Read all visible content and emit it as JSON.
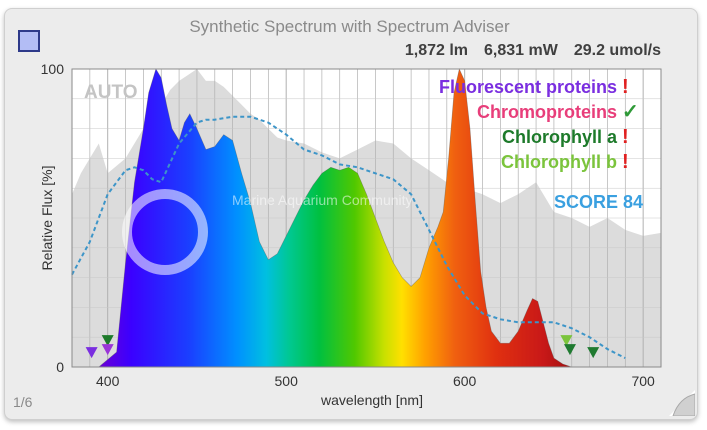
{
  "header": {
    "title": "Synthetic Spectrum with Spectrum Adviser",
    "stats": [
      "1,872 lm",
      "6,831 mW",
      "29.2 umol/s"
    ]
  },
  "page_indicator": "1/6",
  "watermark": "Marine Aquarium Community",
  "icons": {
    "swatch": "color-swatch-icon",
    "page_curl": "page-curl-icon"
  },
  "chart_data": {
    "type": "area",
    "title": "Synthetic Spectrum with Spectrum Adviser",
    "xlabel": "wavelength [nm]",
    "ylabel": "Relative Flux [%]",
    "xlim": [
      380,
      710
    ],
    "ylim": [
      0,
      100
    ],
    "x_ticks": [
      400,
      500,
      600,
      700
    ],
    "y_ticks": [
      0,
      100
    ],
    "grid": true,
    "auto_label": "AUTO",
    "score": "SCORE 84",
    "spectrum": {
      "x": [
        395,
        405,
        410,
        415,
        420,
        423,
        427,
        430,
        433,
        436,
        440,
        443,
        446,
        450,
        455,
        460,
        465,
        470,
        475,
        480,
        485,
        490,
        495,
        500,
        505,
        510,
        515,
        520,
        525,
        530,
        535,
        540,
        545,
        550,
        555,
        560,
        565,
        570,
        575,
        580,
        585,
        588,
        591,
        594,
        597,
        600,
        603,
        606,
        609,
        612,
        615,
        620,
        625,
        630,
        635,
        638,
        641,
        644,
        647,
        650,
        655,
        660
      ],
      "y": [
        0,
        5,
        35,
        62,
        80,
        92,
        100,
        97,
        88,
        80,
        76,
        82,
        85,
        80,
        73,
        74,
        78,
        76,
        65,
        55,
        42,
        36,
        38,
        44,
        50,
        56,
        61,
        65,
        67,
        66,
        67,
        65,
        58,
        50,
        42,
        35,
        30,
        27,
        30,
        40,
        47,
        52,
        70,
        92,
        100,
        96,
        80,
        55,
        32,
        20,
        12,
        8,
        8,
        12,
        19,
        23,
        22,
        15,
        8,
        3,
        1,
        0
      ]
    },
    "reference": {
      "x": [
        380,
        385,
        390,
        395,
        400,
        410,
        420,
        425,
        430,
        435,
        440,
        445,
        450,
        455,
        460,
        465,
        470,
        475,
        480,
        485,
        490,
        495,
        500,
        510,
        520,
        530,
        540,
        550,
        560,
        570,
        580,
        590,
        600,
        610,
        620,
        630,
        640,
        650,
        660,
        670,
        680,
        690,
        700,
        710
      ],
      "y": [
        58,
        65,
        70,
        75,
        65,
        70,
        80,
        84,
        88,
        93,
        96,
        98,
        100,
        96,
        96,
        94,
        91,
        88,
        85,
        83,
        80,
        77,
        76,
        75,
        72,
        70,
        73,
        76,
        75,
        70,
        66,
        62,
        60,
        58,
        55,
        58,
        62,
        52,
        50,
        47,
        50,
        46,
        44,
        45
      ]
    },
    "dashed_curve": {
      "x": [
        380,
        390,
        400,
        410,
        415,
        420,
        425,
        430,
        440,
        450,
        455,
        460,
        470,
        480,
        490,
        500,
        510,
        520,
        530,
        540,
        550,
        560,
        570,
        580,
        590,
        600,
        610,
        620,
        630,
        640,
        650,
        660,
        670,
        680,
        690
      ],
      "y": [
        31,
        42,
        58,
        66,
        67,
        66,
        63,
        62,
        75,
        82,
        83,
        83,
        84,
        84,
        82,
        78,
        73,
        71,
        68,
        67,
        65,
        63,
        58,
        46,
        34,
        24,
        18,
        16,
        15,
        15,
        15,
        13,
        10,
        6,
        3
      ]
    },
    "markers": [
      {
        "x": 391,
        "y": 5,
        "color": "#7a2ee0"
      },
      {
        "x": 400,
        "y": 9,
        "color": "#1d7a2a"
      },
      {
        "x": 400,
        "y": 6,
        "color": "#9a35d8"
      },
      {
        "x": 657,
        "y": 9,
        "color": "#7bc43c"
      },
      {
        "x": 659,
        "y": 6,
        "color": "#1f7a30"
      },
      {
        "x": 672,
        "y": 5,
        "color": "#1f7a30"
      }
    ],
    "legend": [
      {
        "label": "Fluorescent proteins",
        "color": "#7a2ee0",
        "status": "!",
        "status_color": "#e02020"
      },
      {
        "label": "Chromoproteins",
        "color": "#e83e7a",
        "status": "✓",
        "status_color": "#2f9a38"
      },
      {
        "label": "Chlorophyll a",
        "color": "#1d7a2a",
        "status": "!",
        "status_color": "#e02020"
      },
      {
        "label": "Chlorophyll b",
        "color": "#7bc43c",
        "status": "!",
        "status_color": "#e02020"
      }
    ]
  }
}
